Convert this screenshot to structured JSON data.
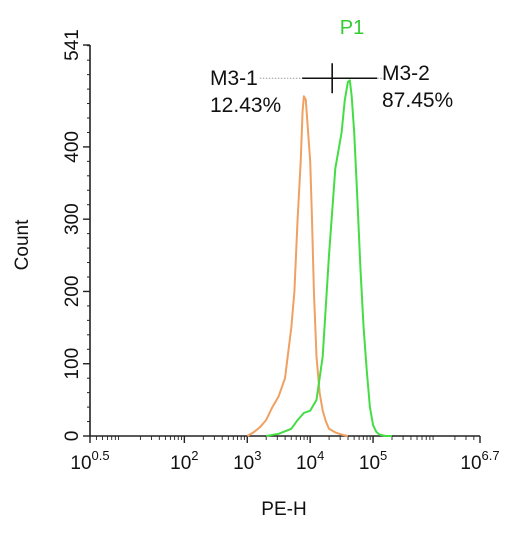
{
  "chart_data": {
    "type": "line",
    "title": "P1",
    "title_color": "#33cc33",
    "xlabel": "PE-H",
    "ylabel": "Count",
    "x_scale": "log10",
    "xlim": [
      0.5,
      6.7
    ],
    "ylim": [
      0,
      541
    ],
    "x_ticks": [
      {
        "exp": 0.5,
        "base": "10",
        "sup": "0.5"
      },
      {
        "exp": 2,
        "base": "10",
        "sup": "2"
      },
      {
        "exp": 3,
        "base": "10",
        "sup": "3"
      },
      {
        "exp": 4,
        "base": "10",
        "sup": "4"
      },
      {
        "exp": 5,
        "base": "10",
        "sup": "5"
      },
      {
        "exp": 6.7,
        "base": "10",
        "sup": "6.7"
      }
    ],
    "y_ticks": [
      0,
      100,
      200,
      300,
      400,
      541
    ],
    "grid": false,
    "series": [
      {
        "color": "#f0a060",
        "x_log10": [
          3.0,
          3.1,
          3.2,
          3.3,
          3.4,
          3.5,
          3.6,
          3.7,
          3.75,
          3.8,
          3.85,
          3.88,
          3.9,
          3.93,
          3.96,
          4.0,
          4.03,
          4.06,
          4.1,
          4.15,
          4.2,
          4.25,
          4.3,
          4.4,
          4.5,
          4.6
        ],
        "values": [
          0,
          5,
          12,
          22,
          40,
          55,
          80,
          150,
          200,
          300,
          380,
          450,
          470,
          465,
          430,
          380,
          300,
          200,
          110,
          60,
          35,
          20,
          10,
          5,
          2,
          0
        ]
      },
      {
        "color": "#44dd44",
        "x_log10": [
          3.3,
          3.5,
          3.7,
          3.8,
          3.9,
          4.0,
          4.1,
          4.2,
          4.3,
          4.4,
          4.5,
          4.55,
          4.6,
          4.63,
          4.66,
          4.7,
          4.75,
          4.8,
          4.85,
          4.9,
          4.95,
          5.0,
          5.05,
          5.1,
          5.2,
          5.3
        ],
        "values": [
          0,
          3,
          10,
          22,
          32,
          35,
          50,
          110,
          250,
          370,
          420,
          465,
          490,
          492,
          470,
          420,
          330,
          230,
          150,
          90,
          40,
          15,
          6,
          2,
          0,
          0
        ]
      }
    ],
    "markers": [
      {
        "name": "M3-1",
        "percent": "12.43%"
      },
      {
        "name": "M3-2",
        "percent": "87.45%"
      }
    ],
    "gate": {
      "y": 495,
      "x_log10_start": 3.2,
      "x_log10_split": 4.35,
      "x_log10_end": 5.2
    }
  }
}
